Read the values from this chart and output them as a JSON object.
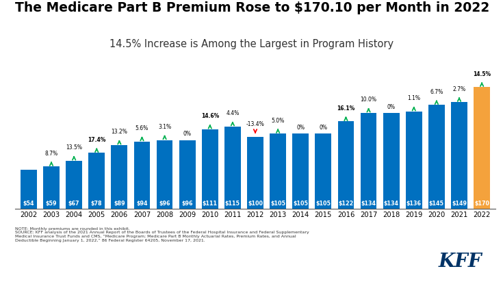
{
  "years": [
    "2002",
    "2003",
    "2004",
    "2005",
    "2006",
    "2007",
    "2008",
    "2009",
    "2010",
    "2011",
    "2012",
    "2013",
    "2014",
    "2015",
    "2016",
    "2017",
    "2018",
    "2019",
    "2020",
    "2021",
    "2022"
  ],
  "values": [
    54,
    59,
    67,
    78,
    89,
    94,
    96,
    96,
    111,
    115,
    100,
    105,
    105,
    105,
    122,
    134,
    134,
    136,
    145,
    149,
    170
  ],
  "pct_changes": [
    "8.7%",
    "13.5%",
    "17.4%",
    "13.2%",
    "5.6%",
    "3.1%",
    "0%",
    "14.6%",
    "4.4%",
    "-13.4%",
    "5.0%",
    "0%",
    "0%",
    "16.1%",
    "10.0%",
    "0%",
    "1.1%",
    "6.7%",
    "2.7%",
    "14.5%"
  ],
  "bar_colors": [
    "#0070C0",
    "#0070C0",
    "#0070C0",
    "#0070C0",
    "#0070C0",
    "#0070C0",
    "#0070C0",
    "#0070C0",
    "#0070C0",
    "#0070C0",
    "#0070C0",
    "#0070C0",
    "#0070C0",
    "#0070C0",
    "#0070C0",
    "#0070C0",
    "#0070C0",
    "#0070C0",
    "#0070C0",
    "#0070C0",
    "#F4A23C"
  ],
  "title": "The Medicare Part B Premium Rose to $170.10 per Month in 2022",
  "subtitle": "14.5% Increase is Among the Largest in Program History",
  "note_line1": "NOTE: Monthly premiums are rounded in this exhibit.",
  "note_line2": "SOURCE: KFF analysis of the 2021 Annual Report of the Boards of Trustees of the Federal Hospital Insurance and Federal Supplementary",
  "note_line3": "Medical Insurance Trust Funds and CMS, “Medicare Program; Medicare Part B Monthly Actuarial Rates, Premium Rates, and Annual",
  "note_line4": "Deductible Beginning January 1, 2022,” 86 Federal Register 64205, November 17, 2021.",
  "title_fontsize": 13.5,
  "subtitle_fontsize": 10.5,
  "background_color": "#FFFFFF",
  "ylim": [
    0,
    205
  ],
  "green_arrow_color": "#00B050",
  "red_arrow_color": "#FF0000",
  "pct_bold_years": [
    "2005",
    "2010",
    "2016",
    "2022"
  ]
}
